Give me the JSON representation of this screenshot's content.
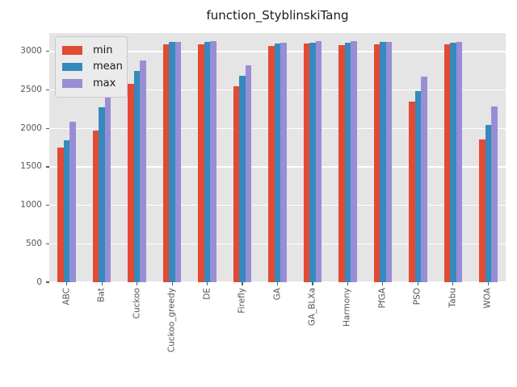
{
  "title": "function_StyblinskiTang",
  "chart_data": {
    "type": "bar",
    "title": "function_StyblinskiTang",
    "categories": [
      "ABC",
      "Bat",
      "Cuckoo",
      "Cuckoo_greedy",
      "DE",
      "Firefly",
      "GA",
      "GA_BLXa",
      "Harmony",
      "PfGA",
      "PSO",
      "Tabu",
      "WOA"
    ],
    "series": [
      {
        "name": "min",
        "color": "#E24A33",
        "values": [
          1755,
          1970,
          2580,
          3095,
          3095,
          2545,
          3075,
          3105,
          3085,
          3095,
          2345,
          3095,
          1860
        ]
      },
      {
        "name": "mean",
        "color": "#348ABD",
        "values": [
          1845,
          2275,
          2750,
          3125,
          3130,
          2680,
          3105,
          3115,
          3115,
          3120,
          2485,
          3110,
          2045
        ]
      },
      {
        "name": "max",
        "color": "#988ED5",
        "values": [
          2085,
          2475,
          2885,
          3130,
          3133,
          2820,
          3110,
          3133,
          3133,
          3125,
          2675,
          3130,
          2290
        ]
      }
    ],
    "xlabel": "",
    "ylabel": "",
    "y_ticks": [
      0,
      500,
      1000,
      1500,
      2000,
      2500,
      3000
    ],
    "ylim": [
      0,
      3240
    ],
    "grid": true,
    "legend_position": "upper-left",
    "styles": {
      "figure_bg": "#FFFFFF",
      "plot_bg": "#E5E5E5",
      "grid_color": "#FFFFFF",
      "tick_label_color": "#555555",
      "title_color": "#1a1a1a"
    }
  }
}
